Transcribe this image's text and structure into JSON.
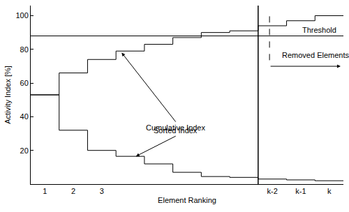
{
  "chart_data": {
    "type": "line",
    "x_label": "Element Ranking",
    "y_label": "Activity Index [%]",
    "categories": [
      "1",
      "2",
      "3",
      null,
      null,
      null,
      null,
      null,
      "k-2",
      "k-1",
      "k"
    ],
    "series": [
      {
        "name": "Cumulative Index",
        "color": "#000000",
        "line_style": "step",
        "values": [
          53,
          66,
          74,
          79,
          83,
          87,
          90,
          91,
          94,
          97,
          100
        ]
      },
      {
        "name": "Sorted Index",
        "color": "#000000",
        "line_style": "step",
        "values": [
          53,
          32,
          20,
          16.5,
          12,
          7,
          4.5,
          4,
          3,
          2.5,
          2
        ]
      }
    ],
    "threshold": {
      "value": 88,
      "label": "Threshold"
    },
    "annotations": [
      "Removed Elements"
    ],
    "ylim": [
      0,
      106
    ],
    "yticks": [
      20,
      40,
      60,
      80,
      100
    ],
    "grid": false
  }
}
